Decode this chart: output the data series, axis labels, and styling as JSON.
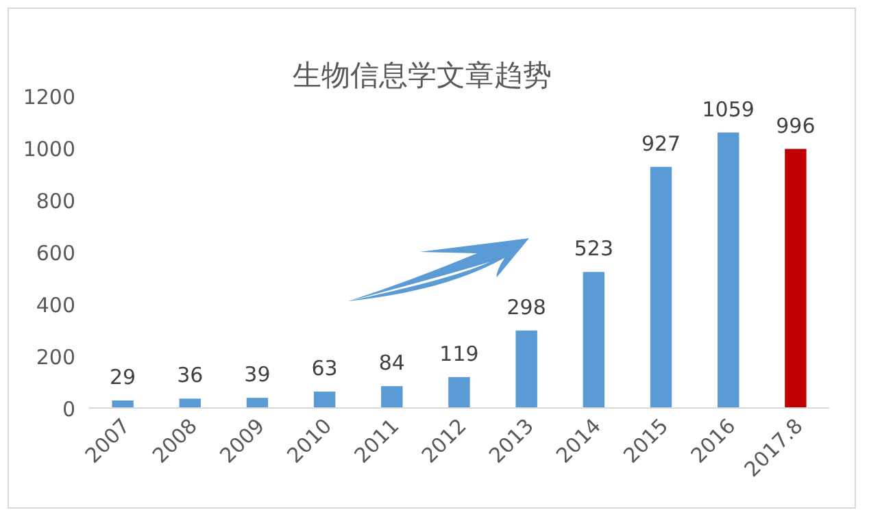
{
  "chart_data": {
    "type": "bar",
    "title": "生物信息学文章趋势",
    "categories": [
      "2007",
      "2008",
      "2009",
      "2010",
      "2011",
      "2012",
      "2013",
      "2014",
      "2015",
      "2016",
      "2017.8"
    ],
    "values": [
      29,
      36,
      39,
      63,
      84,
      119,
      298,
      523,
      927,
      1059,
      996
    ],
    "colors": [
      "#5b9bd5",
      "#5b9bd5",
      "#5b9bd5",
      "#5b9bd5",
      "#5b9bd5",
      "#5b9bd5",
      "#5b9bd5",
      "#5b9bd5",
      "#5b9bd5",
      "#5b9bd5",
      "#c00000"
    ],
    "ylim": [
      0,
      1200
    ],
    "yticks": [
      0,
      200,
      400,
      600,
      800,
      1000,
      1200
    ],
    "grid": false,
    "data_labels": true
  }
}
